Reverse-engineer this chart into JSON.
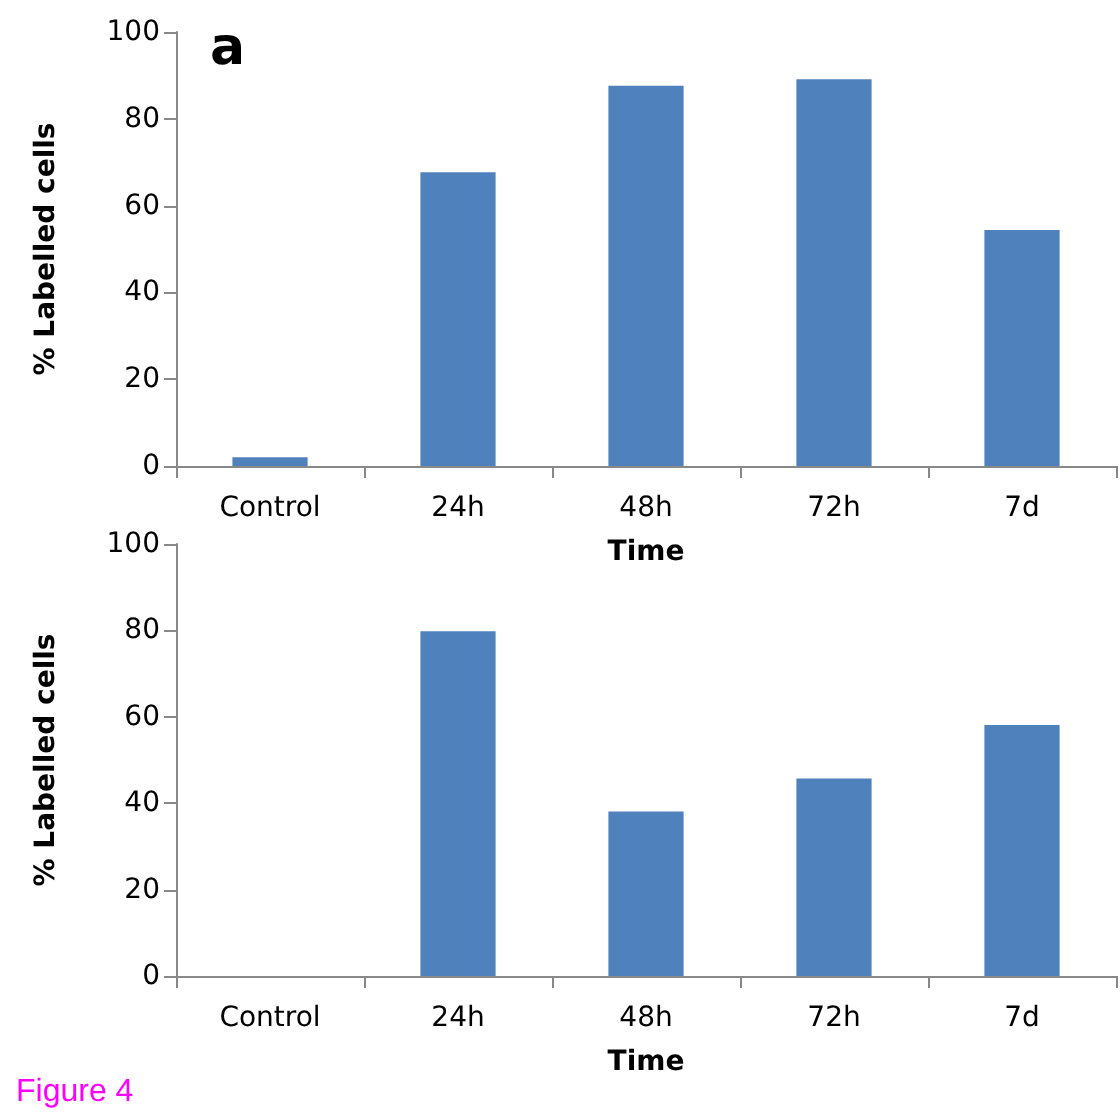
{
  "chart_data": [
    {
      "type": "bar",
      "title": "a",
      "categories": [
        "Control",
        "24h",
        "48h",
        "72h",
        "7d"
      ],
      "values": [
        2,
        67.7,
        87.6,
        89.1,
        54.4
      ],
      "color": "#4f81bd",
      "xlabel": "Time",
      "ylabel": "% Labelled cells",
      "ylim": [
        0,
        100
      ],
      "yticks": [
        0,
        20,
        40,
        60,
        80,
        100
      ],
      "grid": false
    },
    {
      "type": "bar",
      "categories": [
        "Control",
        "24h",
        "48h",
        "72h",
        "7d"
      ],
      "values": [
        0,
        79.8,
        38.1,
        45.7,
        58.1
      ],
      "color": "#4f81bd",
      "xlabel": "Time",
      "ylabel": "% Labelled cells",
      "ylim": [
        0,
        100
      ],
      "yticks": [
        0,
        20,
        40,
        60,
        80,
        100
      ],
      "grid": false,
      "annotations": [
        "Figure 4"
      ]
    }
  ]
}
